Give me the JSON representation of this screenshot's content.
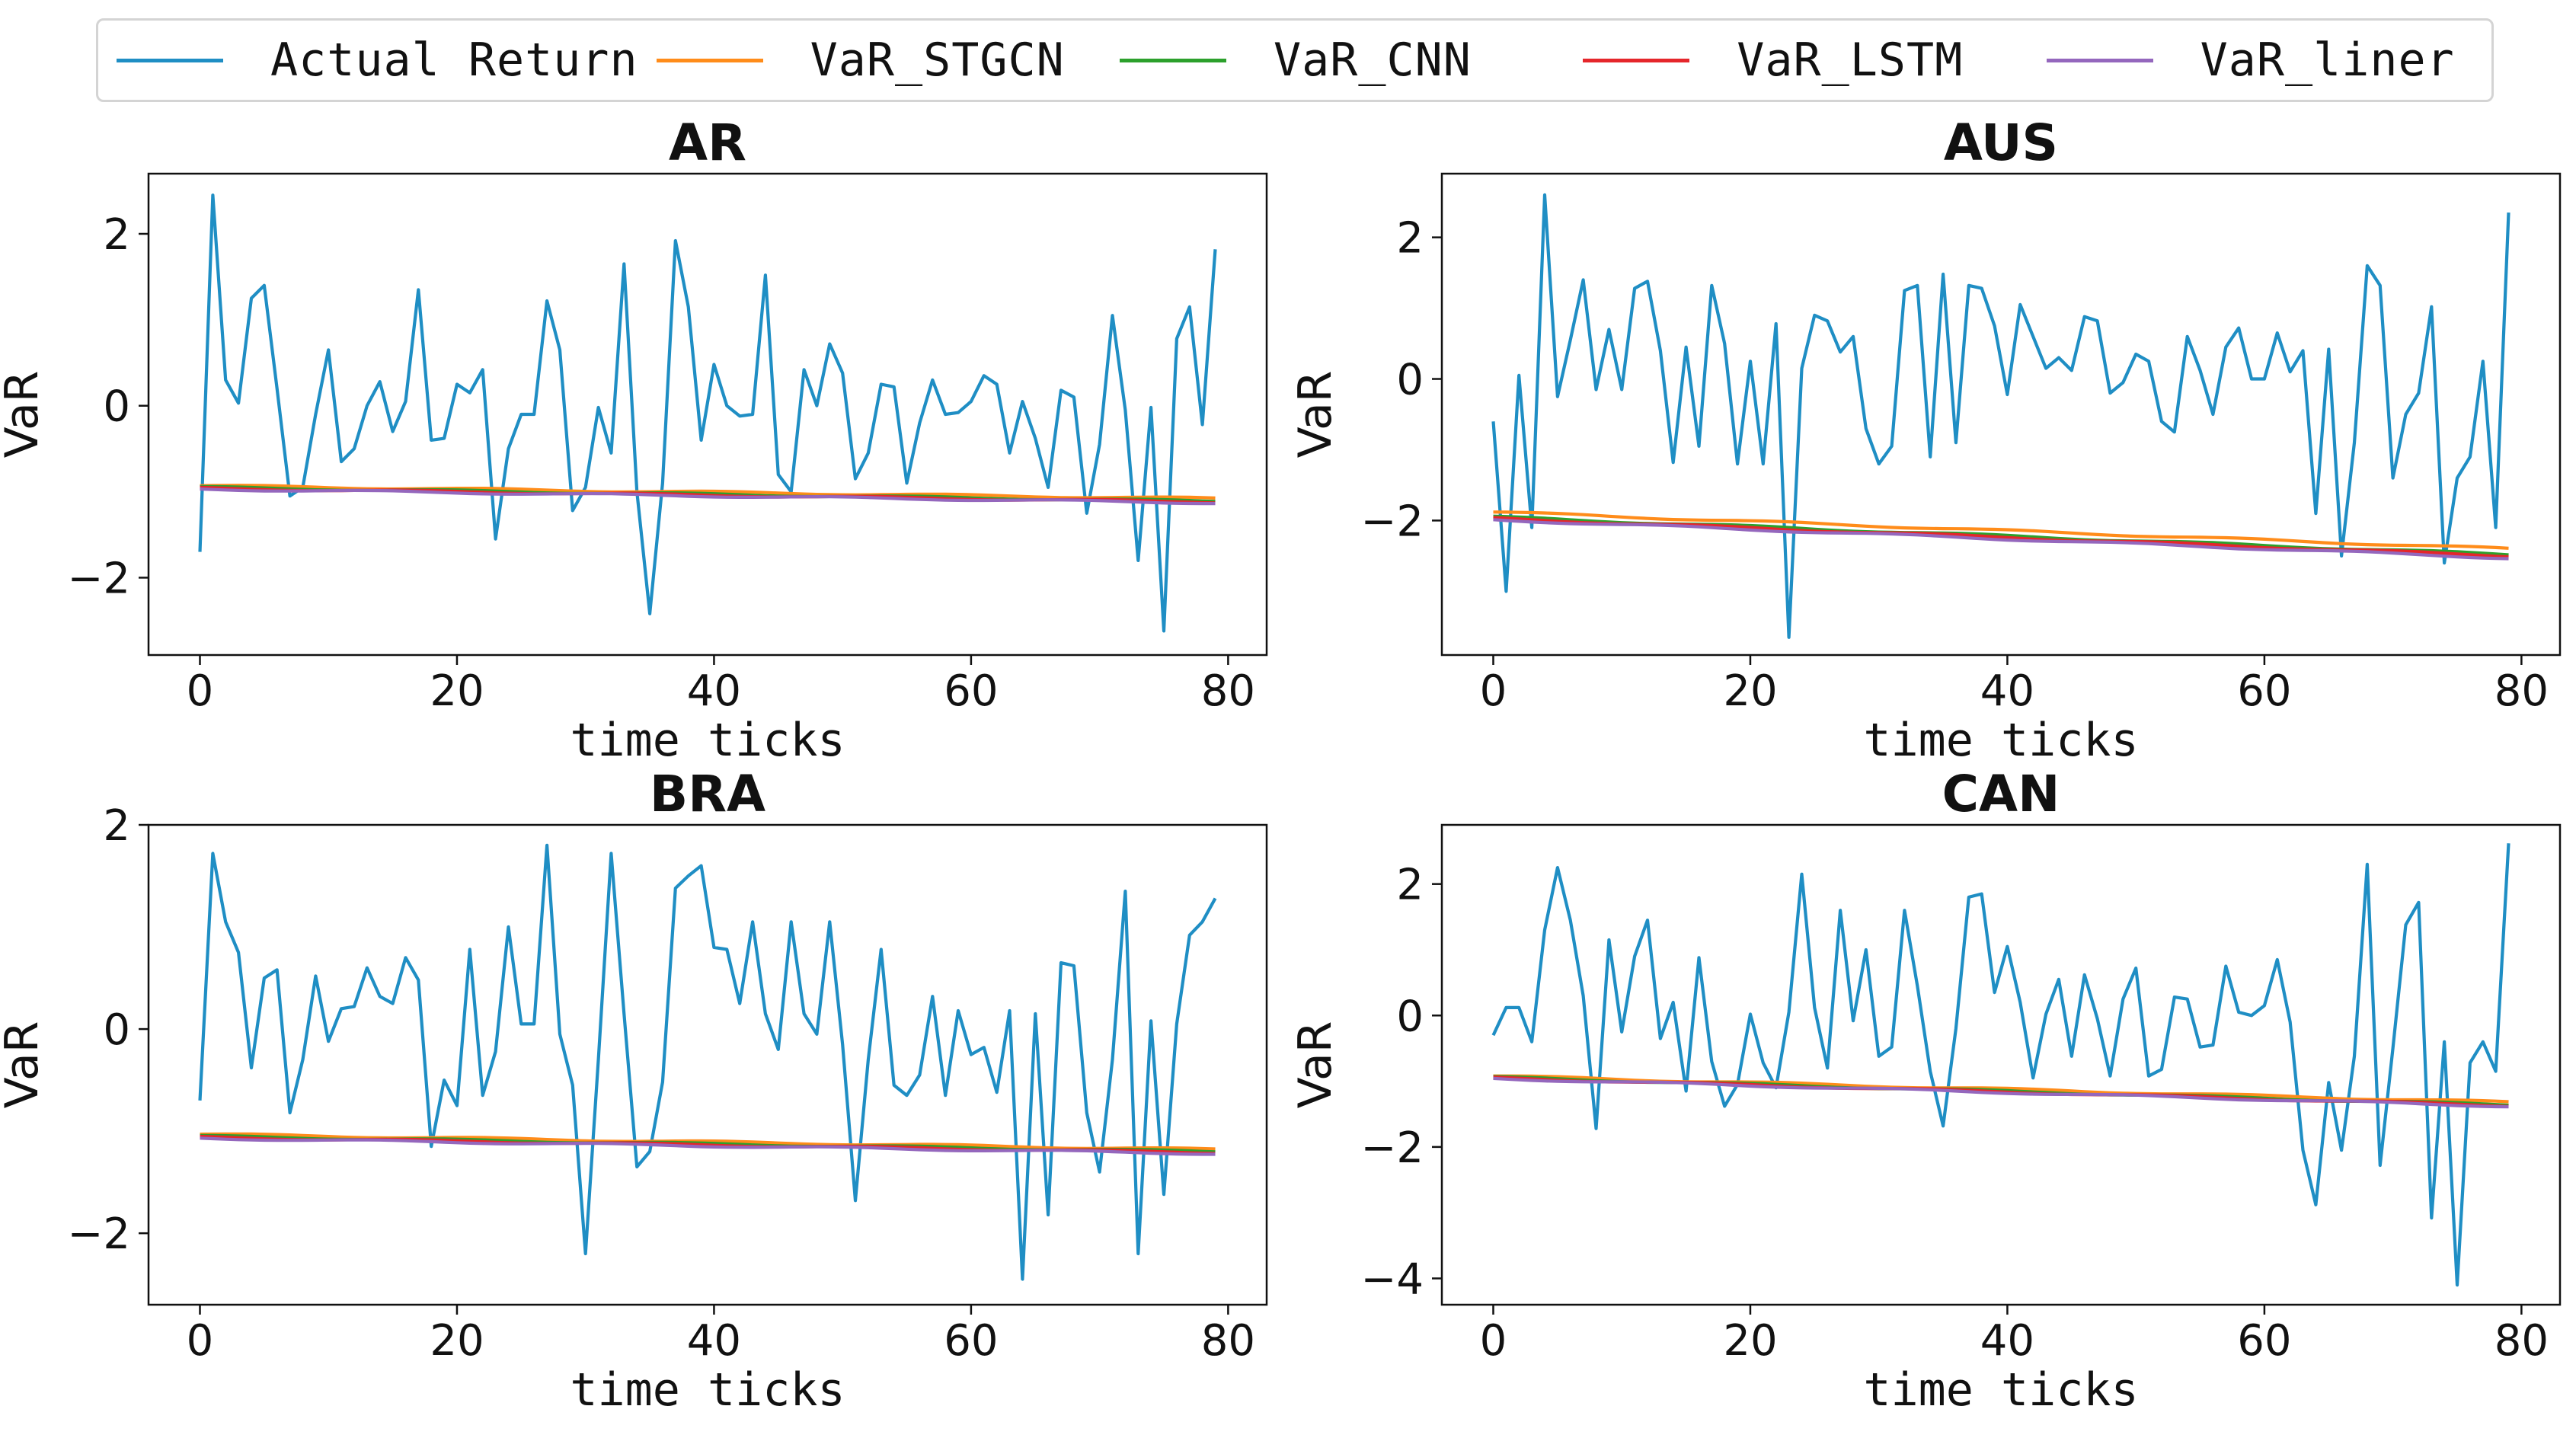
{
  "legend": [
    {
      "label": "Actual Return",
      "color": "#1f8ec4"
    },
    {
      "label": "VaR_STGCN",
      "color": "#ff8c1a"
    },
    {
      "label": "VaR_CNN",
      "color": "#2ca02c"
    },
    {
      "label": "VaR_LSTM",
      "color": "#e5262b"
    },
    {
      "label": "VaR_liner",
      "color": "#9467bd"
    }
  ],
  "chart_data": [
    {
      "type": "line",
      "title": "AR",
      "xlabel": "time ticks",
      "ylabel": "VaR",
      "xlim": [
        -4,
        83
      ],
      "ylim": [
        -2.9,
        2.7
      ],
      "xticks": [
        0,
        20,
        40,
        60,
        80
      ],
      "yticks": [
        -2,
        0,
        2
      ],
      "actual": [
        -1.7,
        2.45,
        0.3,
        0.03,
        1.25,
        1.4,
        0.2,
        -1.05,
        -0.95,
        -0.1,
        0.65,
        -0.65,
        -0.5,
        0.0,
        0.28,
        -0.3,
        0.05,
        1.35,
        -0.4,
        -0.38,
        0.25,
        0.15,
        0.42,
        -1.55,
        -0.5,
        -0.1,
        -0.1,
        1.22,
        0.65,
        -1.22,
        -0.95,
        -0.02,
        -0.55,
        1.65,
        -1.0,
        -2.42,
        -0.9,
        1.92,
        1.15,
        -0.4,
        0.48,
        0.0,
        -0.12,
        -0.1,
        1.52,
        -0.8,
        -1.0,
        0.42,
        0.0,
        0.72,
        0.38,
        -0.85,
        -0.55,
        0.25,
        0.22,
        -0.9,
        -0.2,
        0.3,
        -0.1,
        -0.08,
        0.05,
        0.35,
        0.25,
        -0.55,
        0.05,
        -0.38,
        -0.95,
        0.18,
        0.1,
        -1.25,
        -0.45,
        1.05,
        -0.05,
        -1.8,
        -0.02,
        -2.62,
        0.78,
        1.15,
        -0.22,
        1.82
      ],
      "series": [
        {
          "name": "VaR_STGCN",
          "start": -0.93,
          "end": -1.08
        },
        {
          "name": "VaR_CNN",
          "start": -0.95,
          "end": -1.11
        },
        {
          "name": "VaR_LSTM",
          "start": -0.96,
          "end": -1.12
        },
        {
          "name": "VaR_liner",
          "start": -0.97,
          "end": -1.13
        }
      ]
    },
    {
      "type": "line",
      "title": "AUS",
      "xlabel": "time ticks",
      "ylabel": "VaR",
      "xlim": [
        -4,
        83
      ],
      "ylim": [
        -3.9,
        2.9
      ],
      "xticks": [
        0,
        20,
        40,
        60,
        80
      ],
      "yticks": [
        -2,
        0,
        2
      ],
      "actual": [
        -0.6,
        -3.0,
        0.05,
        -2.1,
        2.6,
        -0.25,
        0.55,
        1.4,
        -0.15,
        0.7,
        -0.15,
        1.28,
        1.38,
        0.4,
        -1.18,
        0.45,
        -0.95,
        1.32,
        0.5,
        -1.2,
        0.25,
        -1.2,
        0.78,
        -3.65,
        0.15,
        0.9,
        0.82,
        0.38,
        0.6,
        -0.7,
        -1.2,
        -0.95,
        1.25,
        1.32,
        -1.1,
        1.48,
        -0.9,
        1.32,
        1.28,
        0.75,
        -0.22,
        1.05,
        0.6,
        0.15,
        0.3,
        0.12,
        0.88,
        0.82,
        -0.2,
        -0.05,
        0.35,
        0.25,
        -0.6,
        -0.75,
        0.6,
        0.12,
        -0.5,
        0.45,
        0.72,
        0.0,
        0.0,
        0.65,
        0.1,
        0.4,
        -1.9,
        0.42,
        -2.5,
        -0.9,
        1.6,
        1.32,
        -1.4,
        -0.5,
        -0.2,
        1.02,
        -2.6,
        -1.4,
        -1.1,
        0.25,
        -2.1,
        2.35
      ],
      "series": [
        {
          "name": "VaR_STGCN",
          "start": -1.88,
          "end": -2.4
        },
        {
          "name": "VaR_CNN",
          "start": -1.95,
          "end": -2.48
        },
        {
          "name": "VaR_LSTM",
          "start": -1.97,
          "end": -2.5
        },
        {
          "name": "VaR_liner",
          "start": -1.99,
          "end": -2.53
        }
      ]
    },
    {
      "type": "line",
      "title": "BRA",
      "xlabel": "time ticks",
      "ylabel": "VaR",
      "xlim": [
        -4,
        83
      ],
      "ylim": [
        -2.7,
        2.0
      ],
      "xticks": [
        0,
        20,
        40,
        60,
        80
      ],
      "yticks": [
        -2,
        0,
        2
      ],
      "actual": [
        -0.7,
        1.72,
        1.05,
        0.75,
        -0.38,
        0.5,
        0.58,
        -0.82,
        -0.3,
        0.52,
        -0.12,
        0.2,
        0.22,
        0.6,
        0.32,
        0.25,
        0.7,
        0.48,
        -1.15,
        -0.5,
        -0.75,
        0.78,
        -0.65,
        -0.22,
        1.0,
        0.05,
        0.05,
        1.8,
        -0.05,
        -0.55,
        -2.2,
        -0.3,
        1.72,
        0.15,
        -1.35,
        -1.2,
        -0.52,
        1.38,
        1.5,
        1.6,
        0.8,
        0.78,
        0.25,
        1.05,
        0.15,
        -0.2,
        1.05,
        0.15,
        -0.05,
        1.05,
        -0.15,
        -1.68,
        -0.3,
        0.78,
        -0.55,
        -0.65,
        -0.45,
        0.32,
        -0.65,
        0.18,
        -0.25,
        -0.18,
        -0.62,
        0.18,
        -2.45,
        0.15,
        -1.82,
        0.65,
        0.62,
        -0.82,
        -1.4,
        -0.3,
        1.35,
        -2.2,
        0.08,
        -1.62,
        0.05,
        0.92,
        1.05,
        1.28
      ],
      "series": [
        {
          "name": "VaR_STGCN",
          "start": -1.03,
          "end": -1.18
        },
        {
          "name": "VaR_CNN",
          "start": -1.05,
          "end": -1.2
        },
        {
          "name": "VaR_LSTM",
          "start": -1.06,
          "end": -1.21
        },
        {
          "name": "VaR_liner",
          "start": -1.07,
          "end": -1.22
        }
      ]
    },
    {
      "type": "line",
      "title": "CAN",
      "xlabel": "time ticks",
      "ylabel": "VaR",
      "xlim": [
        -4,
        83
      ],
      "ylim": [
        -4.4,
        2.9
      ],
      "xticks": [
        0,
        20,
        40,
        60,
        80
      ],
      "yticks": [
        -4,
        -2,
        0,
        2
      ],
      "actual": [
        -0.3,
        0.12,
        0.12,
        -0.4,
        1.3,
        2.25,
        1.45,
        0.3,
        -1.72,
        1.15,
        -0.25,
        0.9,
        1.45,
        -0.35,
        0.2,
        -1.15,
        0.88,
        -0.7,
        -1.38,
        -1.05,
        0.02,
        -0.72,
        -1.1,
        0.05,
        2.15,
        0.12,
        -0.8,
        1.6,
        -0.08,
        1.0,
        -0.62,
        -0.48,
        1.6,
        0.45,
        -0.85,
        -1.68,
        -0.2,
        1.8,
        1.85,
        0.35,
        1.05,
        0.2,
        -0.95,
        0.02,
        0.55,
        -0.62,
        0.62,
        -0.05,
        -0.92,
        0.25,
        0.72,
        -0.92,
        -0.82,
        0.28,
        0.25,
        -0.48,
        -0.45,
        0.75,
        0.05,
        0.0,
        0.15,
        0.85,
        -0.1,
        -2.05,
        -2.88,
        -1.02,
        -2.05,
        -0.62,
        2.3,
        -2.28,
        -0.5,
        1.38,
        1.72,
        -3.08,
        -0.4,
        -4.1,
        -0.72,
        -0.4,
        -0.85,
        2.62
      ],
      "series": [
        {
          "name": "VaR_STGCN",
          "start": -0.92,
          "end": -1.32
        },
        {
          "name": "VaR_CNN",
          "start": -0.94,
          "end": -1.36
        },
        {
          "name": "VaR_LSTM",
          "start": -0.95,
          "end": -1.37
        },
        {
          "name": "VaR_liner",
          "start": -0.96,
          "end": -1.38
        }
      ]
    }
  ]
}
